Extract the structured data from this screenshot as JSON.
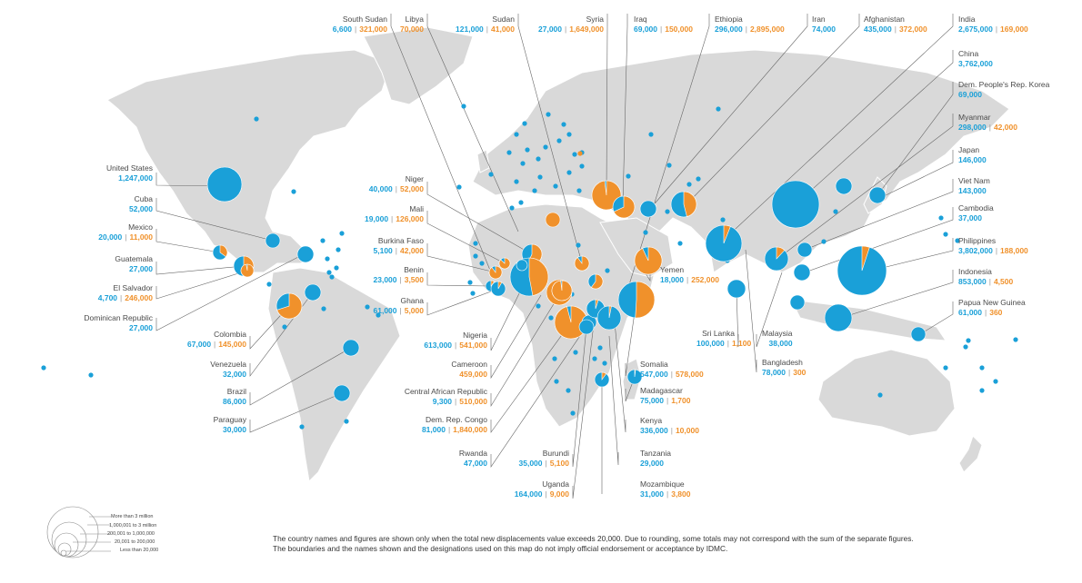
{
  "colors": {
    "conflict": "#1aa0d8",
    "disaster": "#f0912b",
    "land": "#d9d9d9",
    "leader": "#555555"
  },
  "labels": [
    {
      "id": "south-sudan",
      "name": "South Sudan",
      "a": "6,600",
      "b": "321,000"
    },
    {
      "id": "libya",
      "name": "Libya",
      "a": "",
      "b": "70,000"
    },
    {
      "id": "sudan",
      "name": "Sudan",
      "a": "121,000",
      "b": "41,000"
    },
    {
      "id": "syria",
      "name": "Syria",
      "a": "27,000",
      "b": "1,649,000"
    },
    {
      "id": "iraq",
      "name": "Iraq",
      "a": "69,000",
      "b": "150,000"
    },
    {
      "id": "ethiopia",
      "name": "Ethiopia",
      "a": "296,000",
      "b": "2,895,000"
    },
    {
      "id": "iran",
      "name": "Iran",
      "a": "74,000",
      "b": ""
    },
    {
      "id": "afghanistan",
      "name": "Afghanistan",
      "a": "435,000",
      "b": "372,000"
    },
    {
      "id": "india",
      "name": "India",
      "a": "2,675,000",
      "b": "169,000"
    },
    {
      "id": "china",
      "name": "China",
      "a": "3,762,000",
      "b": ""
    },
    {
      "id": "dprk",
      "name": "Dem. People's Rep. Korea",
      "a": "69,000",
      "b": ""
    },
    {
      "id": "myanmar",
      "name": "Myanmar",
      "a": "298,000",
      "b": "42,000"
    },
    {
      "id": "japan",
      "name": "Japan",
      "a": "146,000",
      "b": ""
    },
    {
      "id": "viet-nam",
      "name": "Viet Nam",
      "a": "143,000",
      "b": ""
    },
    {
      "id": "cambodia",
      "name": "Cambodia",
      "a": "37,000",
      "b": ""
    },
    {
      "id": "philippines",
      "name": "Philippines",
      "a": "3,802,000",
      "b": "188,000"
    },
    {
      "id": "indonesia",
      "name": "Indonesia",
      "a": "853,000",
      "b": "4,500"
    },
    {
      "id": "png",
      "name": "Papua New Guinea",
      "a": "61,000",
      "b": "360"
    },
    {
      "id": "united-states",
      "name": "United States",
      "a": "1,247,000",
      "b": ""
    },
    {
      "id": "cuba",
      "name": "Cuba",
      "a": "52,000",
      "b": ""
    },
    {
      "id": "mexico",
      "name": "Mexico",
      "a": "20,000",
      "b": "11,000"
    },
    {
      "id": "guatemala",
      "name": "Guatemala",
      "a": "27,000",
      "b": ""
    },
    {
      "id": "el-salvador",
      "name": "El Salvador",
      "a": "4,700",
      "b": "246,000"
    },
    {
      "id": "dominican-republic",
      "name": "Dominican Republic",
      "a": "27,000",
      "b": ""
    },
    {
      "id": "colombia",
      "name": "Colombia",
      "a": "67,000",
      "b": "145,000"
    },
    {
      "id": "venezuela",
      "name": "Venezuela",
      "a": "32,000",
      "b": ""
    },
    {
      "id": "brazil",
      "name": "Brazil",
      "a": "86,000",
      "b": ""
    },
    {
      "id": "paraguay",
      "name": "Paraguay",
      "a": "30,000",
      "b": ""
    },
    {
      "id": "niger",
      "name": "Niger",
      "a": "40,000",
      "b": "52,000"
    },
    {
      "id": "mali",
      "name": "Mali",
      "a": "19,000",
      "b": "126,000"
    },
    {
      "id": "burkina-faso",
      "name": "Burkina Faso",
      "a": "5,100",
      "b": "42,000"
    },
    {
      "id": "benin",
      "name": "Benin",
      "a": "23,000",
      "b": "3,500"
    },
    {
      "id": "ghana",
      "name": "Ghana",
      "a": "61,000",
      "b": "5,000"
    },
    {
      "id": "nigeria",
      "name": "Nigeria",
      "a": "613,000",
      "b": "541,000"
    },
    {
      "id": "cameroon",
      "name": "Cameroon",
      "a": "",
      "b": "459,000"
    },
    {
      "id": "car",
      "name": "Central African Republic",
      "a": "9,300",
      "b": "510,000"
    },
    {
      "id": "drc",
      "name": "Dem. Rep. Congo",
      "a": "81,000",
      "b": "1,840,000"
    },
    {
      "id": "rwanda",
      "name": "Rwanda",
      "a": "47,000",
      "b": ""
    },
    {
      "id": "burundi",
      "name": "Burundi",
      "a": "35,000",
      "b": "5,100"
    },
    {
      "id": "uganda",
      "name": "Uganda",
      "a": "164,000",
      "b": "9,000"
    },
    {
      "id": "mozambique",
      "name": "Mozambique",
      "a": "31,000",
      "b": "3,800"
    },
    {
      "id": "tanzania",
      "name": "Tanzania",
      "a": "29,000",
      "b": ""
    },
    {
      "id": "kenya",
      "name": "Kenya",
      "a": "336,000",
      "b": "10,000"
    },
    {
      "id": "madagascar",
      "name": "Madagascar",
      "a": "75,000",
      "b": "1,700"
    },
    {
      "id": "somalia",
      "name": "Somalia",
      "a": "547,000",
      "b": "578,000"
    },
    {
      "id": "yemen",
      "name": "Yemen",
      "a": "18,000",
      "b": "252,000"
    },
    {
      "id": "sri-lanka",
      "name": "Sri Lanka",
      "a": "100,000",
      "b": "1,100"
    },
    {
      "id": "malaysia",
      "name": "Malaysia",
      "a": "38,000",
      "b": ""
    },
    {
      "id": "bangladesh",
      "name": "Bangladesh",
      "a": "78,000",
      "b": "300"
    }
  ],
  "legend": [
    "More than 3 million",
    "1,000,001 to 3 million",
    "200,001 to 1,000,000",
    "20,001 to 200,000",
    "Less than 20,000"
  ],
  "footer": {
    "line1": "The country names and figures are shown only when the total new displacements value exceeds 20,000. Due to rounding, some totals may not correspond with the sum of the separate figures.",
    "line2": "The boundaries and the names shown and the designations used on this map do not imply official endorsement or acceptance by IDMC."
  }
}
